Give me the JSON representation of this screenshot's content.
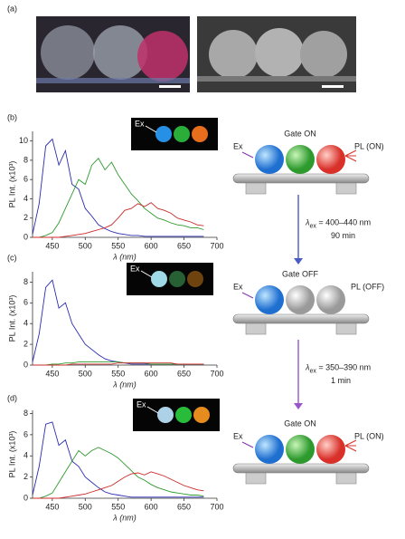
{
  "panels": [
    "(a)",
    "(b)",
    "(c)",
    "(d)"
  ],
  "inset_label": "Ex",
  "diagrams": [
    {
      "gate": "Gate ON",
      "ex": "Ex",
      "pl": "PL (ON)"
    },
    {
      "gate": "Gate OFF",
      "ex": "Ex",
      "pl": "PL (OFF)"
    },
    {
      "gate": "Gate ON",
      "ex": "Ex",
      "pl": "PL (ON)"
    }
  ],
  "arrows": [
    {
      "symbol": "λ",
      "sub": "ex",
      "range": " = 400–440 nm",
      "time": "90 min",
      "color": "#4a5bc4"
    },
    {
      "symbol": "λ",
      "sub": "ex",
      "range": " = 350–390 nm",
      "time": "1 min",
      "color": "#9a55c8"
    }
  ],
  "chart_data": [
    {
      "type": "line",
      "x_label": "λ (nm)",
      "y_label": "PL Int. (x10³)",
      "x": [
        420,
        430,
        440,
        450,
        460,
        470,
        480,
        490,
        500,
        510,
        520,
        530,
        540,
        550,
        560,
        570,
        580,
        590,
        600,
        610,
        620,
        630,
        640,
        650,
        660,
        670,
        680
      ],
      "xlim": [
        420,
        700
      ],
      "xticks": [
        450,
        500,
        550,
        600,
        650,
        700
      ],
      "ylim": [
        0,
        11
      ],
      "yticks": [
        0,
        2,
        4,
        6,
        8,
        10
      ],
      "series": [
        {
          "color": "#2b2bb0",
          "values": [
            0.3,
            3.5,
            9.5,
            10.2,
            7.5,
            9,
            5.5,
            5,
            3,
            2.2,
            1.3,
            0.9,
            0.6,
            0.4,
            0.3,
            0.2,
            0.2,
            0.1,
            0.1,
            0.1,
            0.1,
            0.1,
            0.1,
            0.1,
            0.1,
            0.1,
            0.1
          ]
        },
        {
          "color": "#2e9a2e",
          "values": [
            0,
            0,
            0.2,
            0.5,
            1.5,
            3,
            4.5,
            6,
            5.5,
            7.5,
            8.2,
            7,
            7.8,
            6.5,
            5.5,
            4.5,
            3.8,
            3,
            2.5,
            2,
            1.8,
            1.5,
            1.3,
            1.2,
            1,
            1,
            0.8
          ]
        },
        {
          "color": "#cc2a2a",
          "values": [
            0,
            0,
            0,
            0,
            0,
            0.1,
            0.2,
            0.3,
            0.4,
            0.6,
            0.8,
            1,
            1.3,
            2,
            2.8,
            3,
            3.5,
            3.2,
            3.6,
            3,
            2.8,
            2.5,
            2,
            1.8,
            1.6,
            1.3,
            1.2
          ]
        }
      ]
    },
    {
      "type": "line",
      "x_label": "λ (nm)",
      "y_label": "PL Int. (x10³)",
      "x": [
        420,
        430,
        440,
        450,
        460,
        470,
        480,
        490,
        500,
        510,
        520,
        530,
        540,
        550,
        560,
        570,
        580,
        590,
        600,
        610,
        620,
        630,
        640,
        650,
        660,
        670,
        680
      ],
      "xlim": [
        420,
        700
      ],
      "xticks": [
        450,
        500,
        550,
        600,
        650,
        700
      ],
      "ylim": [
        0,
        9
      ],
      "yticks": [
        0,
        2,
        4,
        6,
        8
      ],
      "series": [
        {
          "color": "#2b2bb0",
          "values": [
            0.3,
            3,
            7.5,
            8.2,
            5.5,
            6,
            4,
            3,
            2,
            1.5,
            1,
            0.6,
            0.4,
            0.3,
            0.2,
            0.1,
            0.1,
            0.1,
            0.1,
            0.1,
            0.1,
            0.1,
            0.1,
            0.1,
            0.1,
            0.1,
            0.1
          ]
        },
        {
          "color": "#2e9a2e",
          "values": [
            0,
            0,
            0,
            0.1,
            0.1,
            0.2,
            0.2,
            0.3,
            0.3,
            0.3,
            0.3,
            0.3,
            0.3,
            0.3,
            0.2,
            0.2,
            0.2,
            0.2,
            0.1,
            0.1,
            0.1,
            0.1,
            0.1,
            0.1,
            0.1,
            0.1,
            0.1
          ]
        },
        {
          "color": "#cc2a2a",
          "values": [
            0,
            0,
            0,
            0,
            0,
            0,
            0.1,
            0.1,
            0.1,
            0.1,
            0.1,
            0.1,
            0.1,
            0.2,
            0.2,
            0.2,
            0.2,
            0.2,
            0.2,
            0.2,
            0.2,
            0.2,
            0.1,
            0.1,
            0.1,
            0.1,
            0.1
          ]
        }
      ]
    },
    {
      "type": "line",
      "x_label": "λ (nm)",
      "y_label": "PL Int. (x10³)",
      "x": [
        420,
        430,
        440,
        450,
        460,
        470,
        480,
        490,
        500,
        510,
        520,
        530,
        540,
        550,
        560,
        570,
        580,
        590,
        600,
        610,
        620,
        630,
        640,
        650,
        660,
        670,
        680
      ],
      "xlim": [
        420,
        700
      ],
      "xticks": [
        450,
        500,
        550,
        600,
        650,
        700
      ],
      "ylim": [
        0,
        8.3
      ],
      "yticks": [
        0,
        2,
        4,
        6,
        8
      ],
      "series": [
        {
          "color": "#2b2bb0",
          "values": [
            0.3,
            3,
            7,
            7.2,
            5,
            5.5,
            3.5,
            3,
            2,
            1.5,
            1,
            0.6,
            0.4,
            0.3,
            0.2,
            0.1,
            0.1,
            0.1,
            0.1,
            0.1,
            0.1,
            0.1,
            0.1,
            0.1,
            0.1,
            0.1,
            0.1
          ]
        },
        {
          "color": "#2e9a2e",
          "values": [
            0,
            0,
            0.2,
            0.5,
            1.5,
            2.5,
            3.5,
            4.5,
            4,
            4.5,
            4.8,
            4.5,
            4.2,
            3.8,
            3.2,
            2.6,
            2,
            1.7,
            1.3,
            1,
            0.8,
            0.6,
            0.5,
            0.4,
            0.3,
            0.3,
            0.2
          ]
        },
        {
          "color": "#cc2a2a",
          "values": [
            0,
            0,
            0,
            0,
            0,
            0.1,
            0.2,
            0.3,
            0.4,
            0.6,
            0.8,
            1,
            1.2,
            1.6,
            2,
            2.3,
            2.4,
            2.2,
            2.5,
            2.3,
            2.1,
            1.8,
            1.5,
            1.2,
            1,
            0.8,
            0.7
          ]
        }
      ]
    }
  ]
}
